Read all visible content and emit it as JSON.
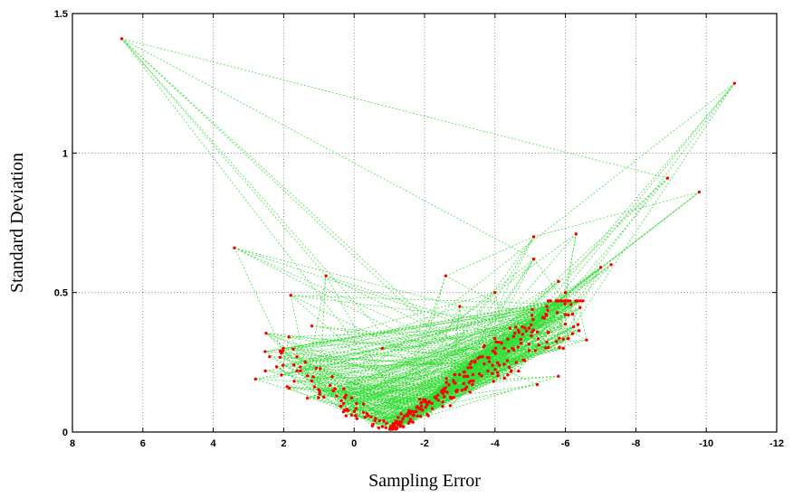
{
  "chart_data": {
    "type": "scatter",
    "title": "",
    "xlabel": "Sampling Error",
    "ylabel": "Standard Deviation",
    "x_reversed": true,
    "xlim": [
      8,
      -12
    ],
    "ylim": [
      0,
      1.5
    ],
    "x_ticks": [
      8,
      6,
      4,
      2,
      0,
      -2,
      -4,
      -6,
      -8,
      -10,
      -12
    ],
    "y_ticks": [
      0,
      0.5,
      1,
      1.5
    ],
    "x_tick_labels": [
      "8",
      "6",
      "4",
      "2",
      "0",
      "-2",
      "-4",
      "-6",
      "-8",
      "-10",
      "-12"
    ],
    "y_tick_labels": [
      "0",
      "0.5",
      "1",
      "1.5"
    ],
    "grid": true,
    "marker_color": "#ff0000",
    "line_color": "#33dd33",
    "featured_points": [
      {
        "x": 6.6,
        "y": 1.41
      },
      {
        "x": -8.9,
        "y": 0.91
      },
      {
        "x": -10.8,
        "y": 1.25
      },
      {
        "x": -9.8,
        "y": 0.86
      },
      {
        "x": 3.4,
        "y": 0.66
      },
      {
        "x": 0.8,
        "y": 0.56
      },
      {
        "x": -2.6,
        "y": 0.56
      },
      {
        "x": 1.8,
        "y": 0.49
      },
      {
        "x": -6.3,
        "y": 0.71
      },
      {
        "x": -5.1,
        "y": 0.7
      },
      {
        "x": -5.1,
        "y": 0.62
      },
      {
        "x": -7.3,
        "y": 0.6
      },
      {
        "x": -7.0,
        "y": 0.59
      },
      {
        "x": -5.8,
        "y": 0.54
      },
      {
        "x": -4.0,
        "y": 0.5
      },
      {
        "x": -6.5,
        "y": 0.47
      },
      {
        "x": -6.0,
        "y": 0.5
      },
      {
        "x": -6.6,
        "y": 0.33
      },
      {
        "x": 2.8,
        "y": 0.19
      },
      {
        "x": 2.4,
        "y": 0.27
      },
      {
        "x": 2.1,
        "y": 0.29
      },
      {
        "x": 1.2,
        "y": 0.38
      },
      {
        "x": -0.8,
        "y": 0.3
      },
      {
        "x": -5.2,
        "y": 0.17
      },
      {
        "x": -5.8,
        "y": 0.2
      },
      {
        "x": -3.7,
        "y": 0.31
      },
      {
        "x": -3.0,
        "y": 0.45
      }
    ],
    "cluster_series": {
      "count": 330,
      "x_range": [
        2.6,
        -6.5
      ],
      "y_range": [
        0.01,
        0.47
      ],
      "shape": "V-shaped cloud with minimum near x=-1, y=0.01"
    }
  }
}
